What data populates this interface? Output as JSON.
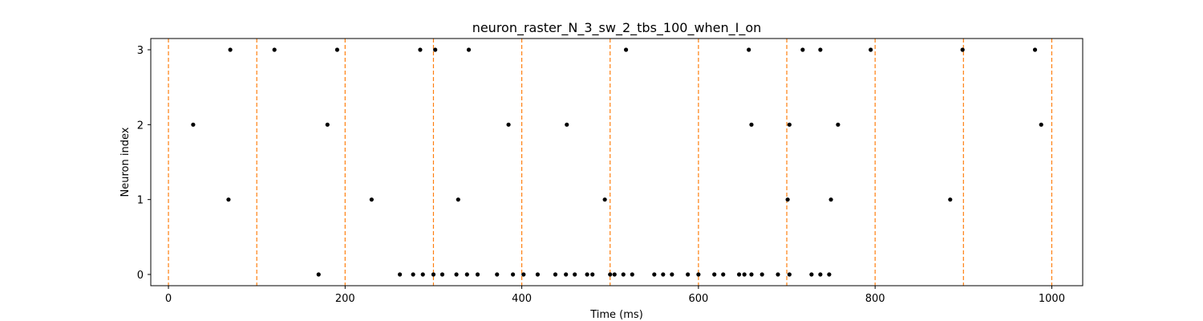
{
  "chart_data": {
    "type": "scatter",
    "title": "neuron_raster_N_3_sw_2_tbs_100_when_I_on",
    "xlabel": "Time (ms)",
    "ylabel": "Neuron index",
    "xlim": [
      -20,
      1035
    ],
    "ylim": [
      -0.15,
      3.15
    ],
    "xticks": [
      0,
      200,
      400,
      600,
      800,
      1000
    ],
    "xtick_labels": [
      "0",
      "200",
      "400",
      "600",
      "800",
      "1000"
    ],
    "yticks": [
      0,
      1,
      2,
      3
    ],
    "ytick_labels": [
      "0",
      "1",
      "2",
      "3"
    ],
    "grid": false,
    "marker_color": "#000000",
    "vline_color": "#ff7f0e",
    "vlines": [
      0,
      100,
      200,
      300,
      400,
      500,
      600,
      700,
      800,
      900,
      1000
    ],
    "series": [
      {
        "values": [
          [
            170,
            0
          ],
          [
            262,
            0
          ],
          [
            277,
            0
          ],
          [
            288,
            0
          ],
          [
            300,
            0
          ],
          [
            310,
            0
          ],
          [
            326,
            0
          ],
          [
            338,
            0
          ],
          [
            350,
            0
          ],
          [
            372,
            0
          ],
          [
            390,
            0
          ],
          [
            402,
            0
          ],
          [
            418,
            0
          ],
          [
            438,
            0
          ],
          [
            450,
            0
          ],
          [
            460,
            0
          ],
          [
            474,
            0
          ],
          [
            480,
            0
          ],
          [
            500,
            0
          ],
          [
            505,
            0
          ],
          [
            515,
            0
          ],
          [
            525,
            0
          ],
          [
            550,
            0
          ],
          [
            560,
            0
          ],
          [
            570,
            0
          ],
          [
            588,
            0
          ],
          [
            600,
            0
          ],
          [
            618,
            0
          ],
          [
            628,
            0
          ],
          [
            646,
            0
          ],
          [
            652,
            0
          ],
          [
            660,
            0
          ],
          [
            672,
            0
          ],
          [
            690,
            0
          ],
          [
            703,
            0
          ],
          [
            728,
            0
          ],
          [
            738,
            0
          ],
          [
            748,
            0
          ]
        ]
      },
      {
        "values": [
          [
            68,
            1
          ],
          [
            230,
            1
          ],
          [
            328,
            1
          ],
          [
            494,
            1
          ],
          [
            701,
            1
          ],
          [
            750,
            1
          ],
          [
            885,
            1
          ]
        ]
      },
      {
        "values": [
          [
            28,
            2
          ],
          [
            180,
            2
          ],
          [
            385,
            2
          ],
          [
            451,
            2
          ],
          [
            660,
            2
          ],
          [
            703,
            2
          ],
          [
            758,
            2
          ],
          [
            988,
            2
          ]
        ]
      },
      {
        "values": [
          [
            70,
            3
          ],
          [
            120,
            3
          ],
          [
            191,
            3
          ],
          [
            285,
            3
          ],
          [
            302,
            3
          ],
          [
            340,
            3
          ],
          [
            518,
            3
          ],
          [
            657,
            3
          ],
          [
            718,
            3
          ],
          [
            738,
            3
          ],
          [
            795,
            3
          ],
          [
            899,
            3
          ],
          [
            981,
            3
          ]
        ]
      }
    ]
  }
}
